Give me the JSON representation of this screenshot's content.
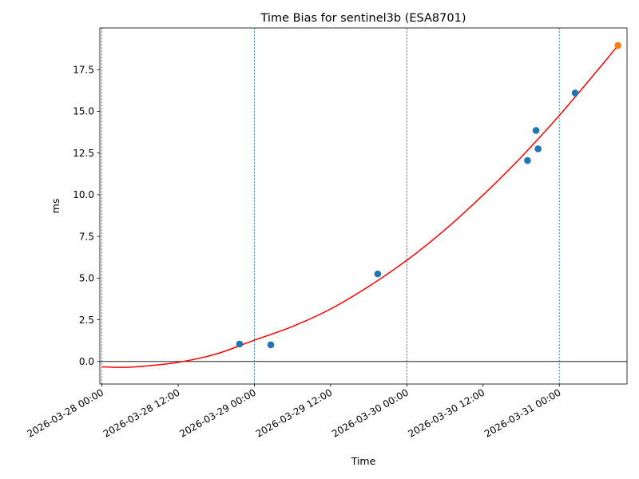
{
  "chart_data": {
    "type": "scatter",
    "title": "Time Bias for sentinel3b (ESA8701)",
    "xlabel": "Time",
    "ylabel": "ms",
    "xlim": [
      "2026-03-27 23:40",
      "2026-03-31 10:40"
    ],
    "ylim": [
      -1.35,
      20.0
    ],
    "x_ticks": [
      "2026-03-28 00:00",
      "2026-03-28 12:00",
      "2026-03-29 00:00",
      "2026-03-29 12:00",
      "2026-03-30 00:00",
      "2026-03-30 12:00",
      "2026-03-31 00:00"
    ],
    "y_ticks": [
      "0.0",
      "2.5",
      "5.0",
      "7.5",
      "10.0",
      "12.5",
      "15.0",
      "17.5"
    ],
    "vertical_dashed_lines": [
      "2026-03-28 00:00",
      "2026-03-29 00:00",
      "2026-03-30 00:00",
      "2026-03-31 00:00"
    ],
    "horizontal_line_y": 0,
    "points": [
      {
        "x": "2026-03-28 21:40",
        "y": 1.05
      },
      {
        "x": "2026-03-29 02:35",
        "y": 1.0
      },
      {
        "x": "2026-03-29 19:25",
        "y": 5.25
      },
      {
        "x": "2026-03-30 19:00",
        "y": 12.05
      },
      {
        "x": "2026-03-30 20:20",
        "y": 13.85
      },
      {
        "x": "2026-03-30 20:40",
        "y": 12.75
      },
      {
        "x": "2026-03-31 02:30",
        "y": 16.1
      }
    ],
    "highlight_point": {
      "x": "2026-03-31 09:15",
      "y": 18.95
    },
    "fit_curve": [
      {
        "x": "2026-03-28 00:00",
        "y": -0.32
      },
      {
        "x": "2026-03-28 03:00",
        "y": -0.35
      },
      {
        "x": "2026-03-28 06:00",
        "y": -0.3
      },
      {
        "x": "2026-03-28 12:00",
        "y": -0.05
      },
      {
        "x": "2026-03-28 18:00",
        "y": 0.45
      },
      {
        "x": "2026-03-29 00:00",
        "y": 1.28
      },
      {
        "x": "2026-03-29 06:00",
        "y": 2.1
      },
      {
        "x": "2026-03-29 12:00",
        "y": 3.15
      },
      {
        "x": "2026-03-29 18:00",
        "y": 4.5
      },
      {
        "x": "2026-03-30 00:00",
        "y": 6.07
      },
      {
        "x": "2026-03-30 06:00",
        "y": 7.9
      },
      {
        "x": "2026-03-30 12:00",
        "y": 9.98
      },
      {
        "x": "2026-03-30 18:00",
        "y": 12.25
      },
      {
        "x": "2026-03-31 00:00",
        "y": 14.75
      },
      {
        "x": "2026-03-31 06:00",
        "y": 17.45
      },
      {
        "x": "2026-03-31 09:15",
        "y": 18.95
      }
    ],
    "grid": false,
    "legend": "none",
    "colors": {
      "points": "#1f77b4",
      "highlight": "#ff7f0e",
      "fit": "#ff0000",
      "vlines": "#1f77b4",
      "zero_line": "#000000"
    }
  }
}
